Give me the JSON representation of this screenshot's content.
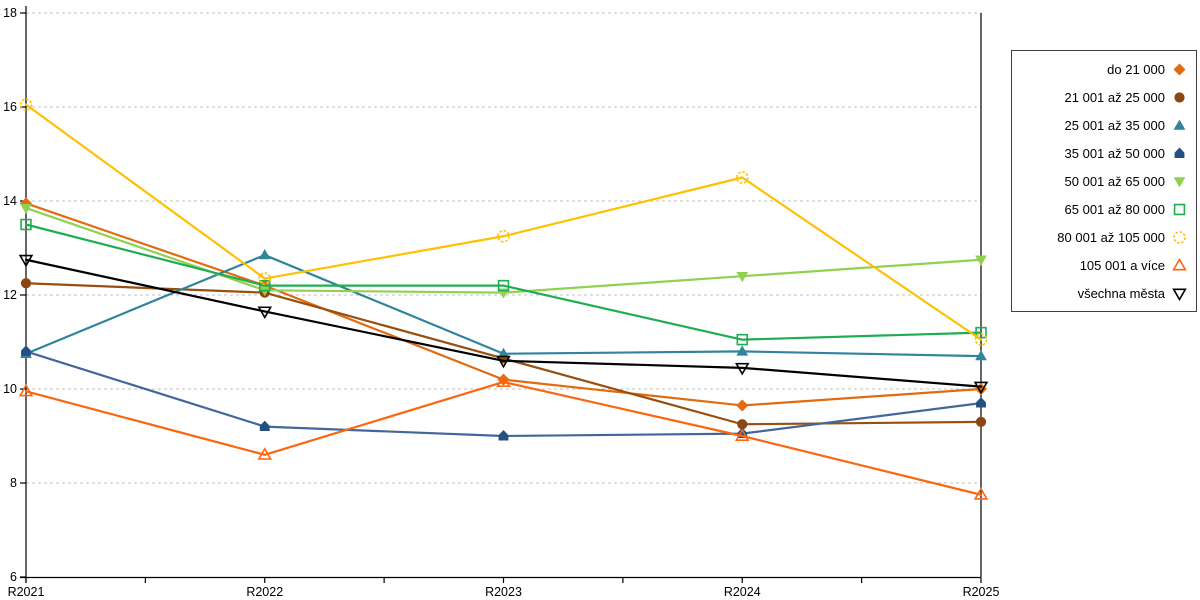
{
  "chart_data": {
    "type": "line",
    "title": "",
    "xlabel": "",
    "ylabel": "",
    "categories": [
      "R2021",
      "R2022",
      "R2023",
      "R2024",
      "R2025"
    ],
    "ylim": [
      6,
      18
    ],
    "yticks": [
      6,
      8,
      10,
      12,
      14,
      16,
      18
    ],
    "grid": "horizontal dashed gridlines at even values",
    "legend_position": "right",
    "series": [
      {
        "name": "do 21 000",
        "color": "#E16B0E",
        "marker_color": "#E16B0E",
        "marker": "diamond",
        "fill": "solid",
        "values": [
          13.95,
          12.2,
          10.2,
          9.65,
          10.0
        ]
      },
      {
        "name": "21 001 až 25 000",
        "color": "#97500F",
        "marker_color": "#8C4612",
        "marker": "circle",
        "fill": "solid",
        "values": [
          12.25,
          12.05,
          10.65,
          9.25,
          9.3
        ]
      },
      {
        "name": "25 001 až 35 000",
        "color": "#31849B",
        "marker_color": "#31849B",
        "marker": "triangle-up",
        "fill": "solid",
        "values": [
          10.75,
          12.85,
          10.75,
          10.8,
          10.7
        ]
      },
      {
        "name": "35 001 až 50 000",
        "color": "#44679B",
        "marker_color": "#235082",
        "marker": "pentagon",
        "fill": "solid",
        "values": [
          10.8,
          9.2,
          9.0,
          9.05,
          9.7
        ]
      },
      {
        "name": "50 001 až 65 000",
        "color": "#92D050",
        "marker_color": "#92D050",
        "marker": "triangle-down",
        "fill": "solid",
        "values": [
          13.85,
          12.1,
          12.05,
          12.4,
          12.75
        ]
      },
      {
        "name": "65 001 až 80 000",
        "color": "#1FAD53",
        "marker_color": "#1FAD53",
        "marker": "square",
        "fill": "open",
        "values": [
          13.5,
          12.2,
          12.2,
          11.05,
          11.2
        ]
      },
      {
        "name": "80 001 až 105 000",
        "color": "#FFC000",
        "marker_color": "#FFC000",
        "marker": "circle-dashed",
        "fill": "open",
        "values": [
          16.05,
          12.35,
          13.25,
          14.5,
          11.05
        ]
      },
      {
        "name": "105 001 a více",
        "color": "#FB6610",
        "marker_color": "#FB6610",
        "marker": "triangle-up",
        "fill": "open",
        "values": [
          9.95,
          8.6,
          10.15,
          9.0,
          7.75
        ]
      },
      {
        "name": "všechna města",
        "color": "#000000",
        "marker_color": "#000000",
        "marker": "triangle-down",
        "fill": "open",
        "values": [
          12.75,
          11.65,
          10.6,
          10.45,
          10.05
        ]
      }
    ]
  },
  "axis": {
    "y_tick_labels": [
      "6",
      "8",
      "10",
      "12",
      "14",
      "16",
      "18"
    ],
    "x_tick_labels": [
      "R2021",
      "R2022",
      "R2023",
      "R2024",
      "R2025"
    ]
  },
  "colors": {
    "gridline": "#BFBFBF",
    "axis": "#000000",
    "background": "#FFFFFF"
  }
}
